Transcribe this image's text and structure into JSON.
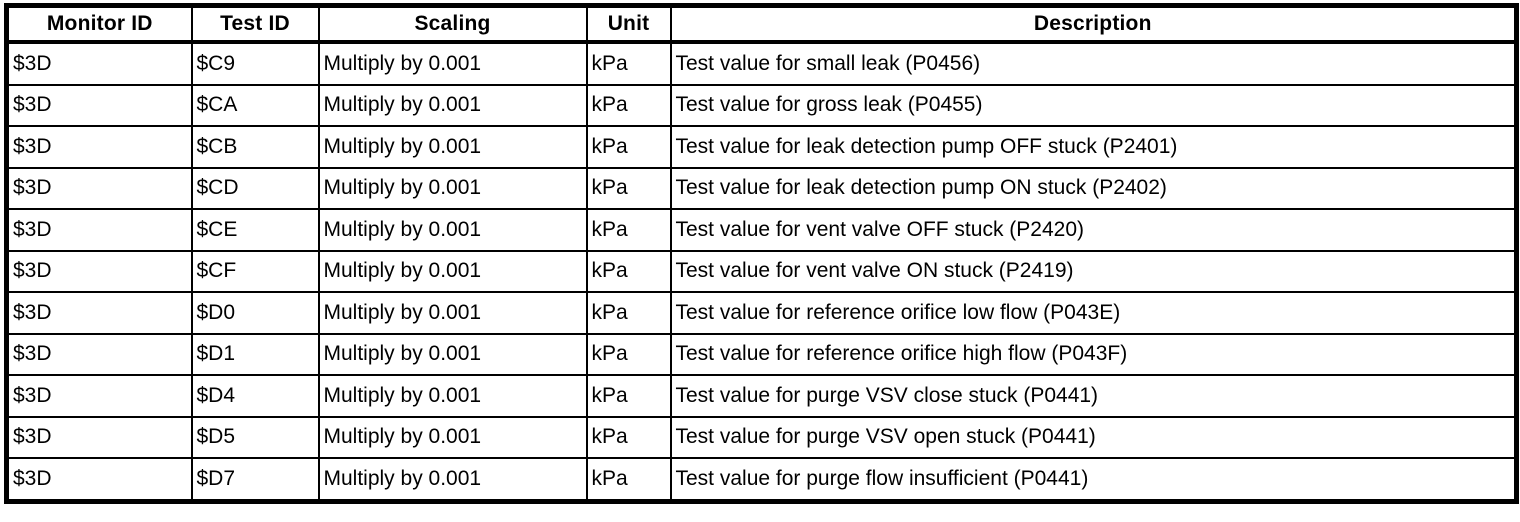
{
  "page": {
    "background_color": "#ffffff",
    "border_color": "#000000",
    "text_color": "#000000"
  },
  "table": {
    "columns": [
      "Monitor ID",
      "Test ID",
      "Scaling",
      "Unit",
      "Description"
    ],
    "column_keys": [
      "monitor-id",
      "test-id",
      "scaling",
      "unit",
      "description"
    ],
    "rows": [
      [
        "$3D",
        "$C9",
        "Multiply by 0.001",
        "kPa",
        "Test value for small leak (P0456)"
      ],
      [
        "$3D",
        "$CA",
        "Multiply by 0.001",
        "kPa",
        "Test value for gross leak (P0455)"
      ],
      [
        "$3D",
        "$CB",
        "Multiply by 0.001",
        "kPa",
        "Test value for leak detection pump OFF stuck (P2401)"
      ],
      [
        "$3D",
        "$CD",
        "Multiply by 0.001",
        "kPa",
        "Test value for leak detection pump ON stuck (P2402)"
      ],
      [
        "$3D",
        "$CE",
        "Multiply by 0.001",
        "kPa",
        "Test value for vent valve OFF stuck (P2420)"
      ],
      [
        "$3D",
        "$CF",
        "Multiply by 0.001",
        "kPa",
        "Test value for vent valve ON stuck (P2419)"
      ],
      [
        "$3D",
        "$D0",
        "Multiply by 0.001",
        "kPa",
        "Test value for reference orifice low flow (P043E)"
      ],
      [
        "$3D",
        "$D1",
        "Multiply by 0.001",
        "kPa",
        "Test value for reference orifice high flow (P043F)"
      ],
      [
        "$3D",
        "$D4",
        "Multiply by 0.001",
        "kPa",
        "Test value for purge VSV close stuck (P0441)"
      ],
      [
        "$3D",
        "$D5",
        "Multiply by 0.001",
        "kPa",
        "Test value for purge VSV open stuck (P0441)"
      ],
      [
        "$3D",
        "$D7",
        "Multiply by 0.001",
        "kPa",
        "Test value for purge flow insufficient (P0441)"
      ]
    ]
  }
}
